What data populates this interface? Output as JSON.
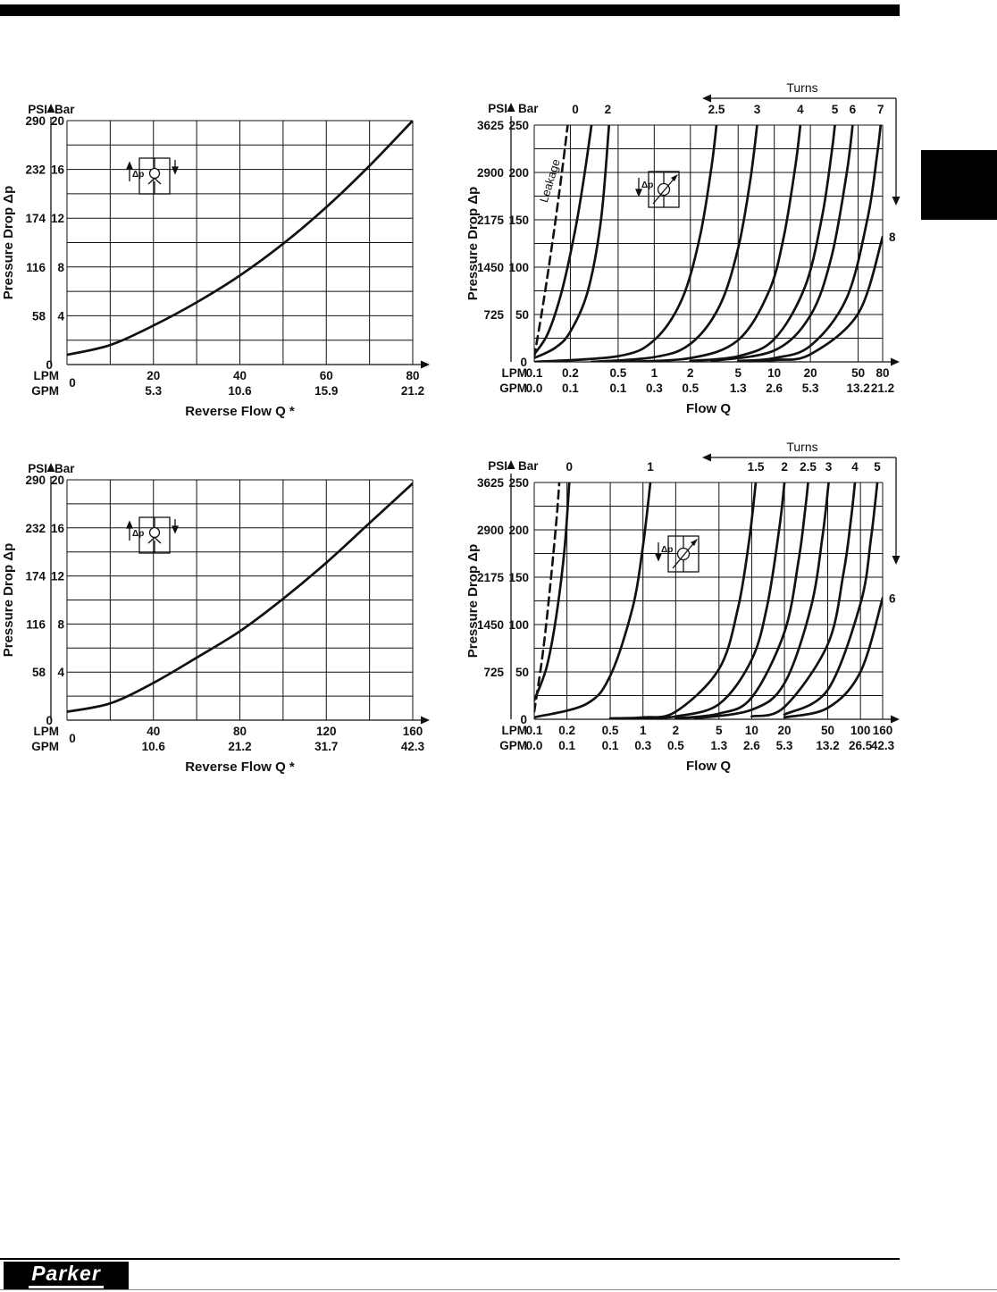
{
  "footer": {
    "logo_text": "Parker"
  },
  "chart_data": [
    {
      "id": "reverse-flow-upper",
      "type": "line",
      "kind": "linear",
      "xlabel": "Reverse Flow Q *",
      "ylabel": "Pressure Drop Δp",
      "units": {
        "psi": "PSI",
        "bar": "Bar",
        "lpm": "LPM",
        "gpm": "GPM"
      },
      "zero_label": "0",
      "x_zero_label": "0",
      "psi_labels": [
        "290",
        "232",
        "174",
        "116",
        "58"
      ],
      "bar_labels": [
        "20",
        "16",
        "12",
        "8",
        "4"
      ],
      "label_bars": [
        20,
        16,
        12,
        8,
        4
      ],
      "ylim": [
        0,
        20
      ],
      "ygrid": 2,
      "xlim": [
        0,
        80
      ],
      "xgrid": 10,
      "x_ticks": [
        {
          "q": 20,
          "lpm": "20",
          "gpm": "5.3"
        },
        {
          "q": 40,
          "lpm": "40",
          "gpm": "10.6"
        },
        {
          "q": 60,
          "lpm": "60",
          "gpm": "15.9"
        },
        {
          "q": 80,
          "lpm": "80",
          "gpm": "21.2"
        }
      ],
      "symbol": {
        "icon": "check-valve-icon",
        "label": "Δp"
      },
      "curves": [
        {
          "name": "reverse-flow-curve",
          "points": [
            [
              0,
              0.8
            ],
            [
              10,
              1.6
            ],
            [
              20,
              3.2
            ],
            [
              30,
              5.1
            ],
            [
              40,
              7.3
            ],
            [
              50,
              9.9
            ],
            [
              60,
              12.9
            ],
            [
              70,
              16.3
            ],
            [
              80,
              20
            ]
          ]
        }
      ]
    },
    {
      "id": "flow-q-upper",
      "type": "line",
      "kind": "log",
      "xlabel": "Flow Q",
      "ylabel": "Pressure Drop Δp",
      "units": {
        "psi": "PSI",
        "bar": "Bar",
        "lpm": "LPM",
        "gpm": "GPM"
      },
      "zero_label": "0",
      "psi_labels": [
        "3625",
        "2900",
        "2175",
        "1450",
        "725"
      ],
      "bar_labels": [
        "250",
        "200",
        "150",
        "100",
        "50"
      ],
      "label_bars": [
        250,
        200,
        150,
        100,
        50
      ],
      "ylim": [
        0,
        250
      ],
      "ygrid": 25,
      "xlim": [
        0.1,
        80
      ],
      "x_ticks": [
        {
          "q": 0.1,
          "lpm": "0.1",
          "gpm": "0.0"
        },
        {
          "q": 0.2,
          "lpm": "0.2",
          "gpm": "0.1"
        },
        {
          "q": 0.5,
          "lpm": "0.5",
          "gpm": "0.1"
        },
        {
          "q": 1,
          "lpm": "1",
          "gpm": "0.3"
        },
        {
          "q": 2,
          "lpm": "2",
          "gpm": "0.5"
        },
        {
          "q": 5,
          "lpm": "5",
          "gpm": "1.3"
        },
        {
          "q": 10,
          "lpm": "10",
          "gpm": "2.6"
        },
        {
          "q": 20,
          "lpm": "20",
          "gpm": "5.3"
        },
        {
          "q": 50,
          "lpm": "50",
          "gpm": "13.2"
        },
        {
          "q": 80,
          "lpm": "80",
          "gpm": "21.2"
        }
      ],
      "turns": {
        "header": "Turns",
        "labels": [
          {
            "text": "0",
            "q": 0.22
          },
          {
            "text": "2",
            "q": 0.41
          },
          {
            "text": "2.5",
            "q": 3.3
          },
          {
            "text": "3",
            "q": 7.2
          },
          {
            "text": "4",
            "q": 16.5
          },
          {
            "text": "5",
            "q": 32
          },
          {
            "text": "6",
            "q": 45
          },
          {
            "text": "7",
            "q": 77
          }
        ],
        "side_label": {
          "text": "8",
          "bar": 132
        }
      },
      "leakage_label": "Leakage",
      "symbol": {
        "icon": "flow-control-valve-icon",
        "label": "Δp"
      },
      "curves": [
        {
          "name": "leakage-curve",
          "dashed": true,
          "points": [
            [
              0.1,
              5
            ],
            [
              0.12,
              65
            ],
            [
              0.145,
              135
            ],
            [
              0.17,
              200
            ],
            [
              0.19,
              250
            ]
          ]
        },
        {
          "name": "turns-0-curve",
          "points": [
            [
              0.1,
              8
            ],
            [
              0.13,
              30
            ],
            [
              0.17,
              75
            ],
            [
              0.22,
              140
            ],
            [
              0.26,
              195
            ],
            [
              0.3,
              250
            ]
          ]
        },
        {
          "name": "turns-2-curve",
          "points": [
            [
              0.1,
              4
            ],
            [
              0.15,
              15
            ],
            [
              0.2,
              32
            ],
            [
              0.28,
              75
            ],
            [
              0.36,
              150
            ],
            [
              0.42,
              250
            ]
          ]
        },
        {
          "name": "turns-2-5-curve",
          "points": [
            [
              0.1,
              0
            ],
            [
              0.5,
              6
            ],
            [
              1,
              23
            ],
            [
              1.7,
              66
            ],
            [
              2.4,
              132
            ],
            [
              3,
              206
            ],
            [
              3.3,
              250
            ]
          ]
        },
        {
          "name": "turns-3-curve",
          "points": [
            [
              0.3,
              0
            ],
            [
              1,
              5
            ],
            [
              2,
              19
            ],
            [
              3.5,
              59
            ],
            [
              5,
              120
            ],
            [
              6.3,
              191
            ],
            [
              7.2,
              250
            ]
          ]
        },
        {
          "name": "turns-4-curve",
          "points": [
            [
              0.5,
              0
            ],
            [
              2,
              4
            ],
            [
              5,
              23
            ],
            [
              9,
              74
            ],
            [
              12,
              132
            ],
            [
              15,
              207
            ],
            [
              16.5,
              250
            ]
          ]
        },
        {
          "name": "turns-5-curve",
          "points": [
            [
              2,
              1
            ],
            [
              5,
              6
            ],
            [
              10,
              24
            ],
            [
              18,
              79
            ],
            [
              25,
              153
            ],
            [
              30,
              220
            ],
            [
              32,
              250
            ]
          ]
        },
        {
          "name": "turns-6-curve",
          "points": [
            [
              3,
              1
            ],
            [
              10,
              12
            ],
            [
              20,
              49
            ],
            [
              30,
              111
            ],
            [
              40,
              198
            ],
            [
              45,
              250
            ]
          ]
        },
        {
          "name": "turns-7-curve",
          "points": [
            [
              5,
              1
            ],
            [
              10,
              4
            ],
            [
              20,
              17
            ],
            [
              40,
              67
            ],
            [
              60,
              152
            ],
            [
              72,
              219
            ],
            [
              77,
              250
            ]
          ]
        },
        {
          "name": "turns-8-curve",
          "points": [
            [
              5,
              0
            ],
            [
              10,
              2
            ],
            [
              20,
              8
            ],
            [
              50,
              51
            ],
            [
              80,
              132
            ]
          ]
        }
      ]
    },
    {
      "id": "reverse-flow-lower",
      "type": "line",
      "kind": "linear",
      "xlabel": "Reverse Flow Q *",
      "ylabel": "Pressure Drop Δp",
      "units": {
        "psi": "PSI",
        "bar": "Bar",
        "lpm": "LPM",
        "gpm": "GPM"
      },
      "zero_label": "0",
      "x_zero_label": "0",
      "psi_labels": [
        "290",
        "232",
        "174",
        "116",
        "58"
      ],
      "bar_labels": [
        "20",
        "16",
        "12",
        "8",
        "4"
      ],
      "label_bars": [
        20,
        16,
        12,
        8,
        4
      ],
      "ylim": [
        0,
        20
      ],
      "ygrid": 2,
      "xlim": [
        0,
        160
      ],
      "xgrid": 20,
      "x_ticks": [
        {
          "q": 40,
          "lpm": "40",
          "gpm": "10.6"
        },
        {
          "q": 80,
          "lpm": "80",
          "gpm": "21.2"
        },
        {
          "q": 120,
          "lpm": "120",
          "gpm": "31.7"
        },
        {
          "q": 160,
          "lpm": "160",
          "gpm": "42.3"
        }
      ],
      "symbol": {
        "icon": "check-valve-icon",
        "label": "Δp"
      },
      "curves": [
        {
          "name": "reverse-flow-curve",
          "points": [
            [
              0,
              0.7
            ],
            [
              20,
              1.4
            ],
            [
              40,
              3.1
            ],
            [
              60,
              5.2
            ],
            [
              80,
              7.4
            ],
            [
              100,
              10.1
            ],
            [
              120,
              13.1
            ],
            [
              140,
              16.4
            ],
            [
              160,
              19.7
            ]
          ]
        }
      ]
    },
    {
      "id": "flow-q-lower",
      "type": "line",
      "kind": "log",
      "xlabel": "Flow Q",
      "ylabel": "Pressure Drop Δp",
      "units": {
        "psi": "PSI",
        "bar": "Bar",
        "lpm": "LPM",
        "gpm": "GPM"
      },
      "zero_label": "0",
      "psi_labels": [
        "3625",
        "2900",
        "2175",
        "1450",
        "725"
      ],
      "bar_labels": [
        "250",
        "200",
        "150",
        "100",
        "50"
      ],
      "label_bars": [
        250,
        200,
        150,
        100,
        50
      ],
      "ylim": [
        0,
        250
      ],
      "ygrid": 25,
      "xlim": [
        0.1,
        160
      ],
      "x_ticks": [
        {
          "q": 0.1,
          "lpm": "0.1",
          "gpm": "0.0"
        },
        {
          "q": 0.2,
          "lpm": "0.2",
          "gpm": "0.1"
        },
        {
          "q": 0.5,
          "lpm": "0.5",
          "gpm": "0.1"
        },
        {
          "q": 1,
          "lpm": "1",
          "gpm": "0.3"
        },
        {
          "q": 2,
          "lpm": "2",
          "gpm": "0.5"
        },
        {
          "q": 5,
          "lpm": "5",
          "gpm": "1.3"
        },
        {
          "q": 10,
          "lpm": "10",
          "gpm": "2.6"
        },
        {
          "q": 20,
          "lpm": "20",
          "gpm": "5.3"
        },
        {
          "q": 50,
          "lpm": "50",
          "gpm": "13.2"
        },
        {
          "q": 100,
          "lpm": "100",
          "gpm": "26.5"
        },
        {
          "q": 160,
          "lpm": "160",
          "gpm": "42.3"
        }
      ],
      "turns": {
        "header": "Turns",
        "labels": [
          {
            "text": "0",
            "q": 0.21
          },
          {
            "text": "1",
            "q": 1.17
          },
          {
            "text": "1.5",
            "q": 10.9
          },
          {
            "text": "2",
            "q": 20
          },
          {
            "text": "2.5",
            "q": 33
          },
          {
            "text": "3",
            "q": 51
          },
          {
            "text": "4",
            "q": 89
          },
          {
            "text": "5",
            "q": 143
          }
        ],
        "side_label": {
          "text": "6",
          "bar": 128
        }
      },
      "symbol": {
        "icon": "flow-control-valve-icon",
        "label": "Δp"
      },
      "curves": [
        {
          "name": "leakage-curve",
          "dashed": true,
          "points": [
            [
              0.1,
              8
            ],
            [
              0.12,
              70
            ],
            [
              0.14,
              140
            ],
            [
              0.16,
              210
            ],
            [
              0.17,
              250
            ]
          ]
        },
        {
          "name": "turns-0-curve",
          "points": [
            [
              0.1,
              20
            ],
            [
              0.13,
              55
            ],
            [
              0.16,
              110
            ],
            [
              0.19,
              180
            ],
            [
              0.21,
              250
            ]
          ]
        },
        {
          "name": "turns-1-curve",
          "points": [
            [
              0.1,
              2
            ],
            [
              0.3,
              16
            ],
            [
              0.5,
              46
            ],
            [
              0.8,
              117
            ],
            [
              1,
              183
            ],
            [
              1.17,
              250
            ]
          ]
        },
        {
          "name": "turns-1-5-curve",
          "points": [
            [
              0.5,
              1
            ],
            [
              1,
              2
            ],
            [
              2,
              8
            ],
            [
              5,
              53
            ],
            [
              7.5,
              118
            ],
            [
              9.5,
              190
            ],
            [
              10.9,
              250
            ]
          ]
        },
        {
          "name": "turns-2-curve",
          "points": [
            [
              1,
              1
            ],
            [
              2,
              3
            ],
            [
              5,
              16
            ],
            [
              10,
              63
            ],
            [
              14,
              122
            ],
            [
              18,
              203
            ],
            [
              20,
              250
            ]
          ]
        },
        {
          "name": "turns-2-5-curve",
          "points": [
            [
              2,
              1
            ],
            [
              5,
              6
            ],
            [
              10,
              23
            ],
            [
              20,
              92
            ],
            [
              27,
              168
            ],
            [
              31,
              221
            ],
            [
              33,
              250
            ]
          ]
        },
        {
          "name": "turns-3-curve",
          "points": [
            [
              3,
              1
            ],
            [
              10,
              10
            ],
            [
              20,
              38
            ],
            [
              35,
              118
            ],
            [
              45,
              195
            ],
            [
              51,
              250
            ]
          ]
        },
        {
          "name": "turns-4-curve",
          "points": [
            [
              10,
              3
            ],
            [
              20,
              13
            ],
            [
              50,
              79
            ],
            [
              70,
              155
            ],
            [
              82,
              212
            ],
            [
              89,
              250
            ]
          ]
        },
        {
          "name": "turns-5-curve",
          "points": [
            [
              20,
              5
            ],
            [
              50,
              31
            ],
            [
              100,
              122
            ],
            [
              125,
              191
            ],
            [
              143,
              250
            ]
          ]
        },
        {
          "name": "turns-6-curve",
          "points": [
            [
              20,
              2
            ],
            [
              50,
              12
            ],
            [
              100,
              50
            ],
            [
              160,
              128
            ]
          ]
        }
      ]
    }
  ]
}
